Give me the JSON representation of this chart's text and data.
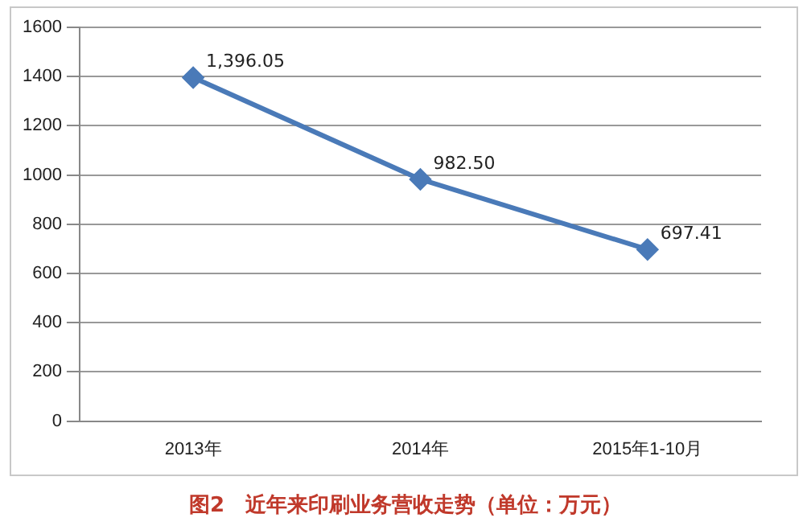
{
  "chart_data": {
    "type": "line",
    "title": "图2　近年来印刷业务营收走势（单位：万元）",
    "categories": [
      "2013年",
      "2014年",
      "2015年1-10月"
    ],
    "series": [
      {
        "color": "#4a7ab8",
        "values": [
          1396.05,
          982.5,
          697.41
        ],
        "value_labels": [
          "1,396.05",
          "982.50",
          "697.41"
        ]
      }
    ],
    "ylim": [
      0,
      1600
    ],
    "yticks": [
      0,
      200,
      400,
      600,
      800,
      1000,
      1200,
      1400,
      1600
    ],
    "grid": "y",
    "legend": false,
    "marker": "diamond",
    "line_style": "solid"
  }
}
